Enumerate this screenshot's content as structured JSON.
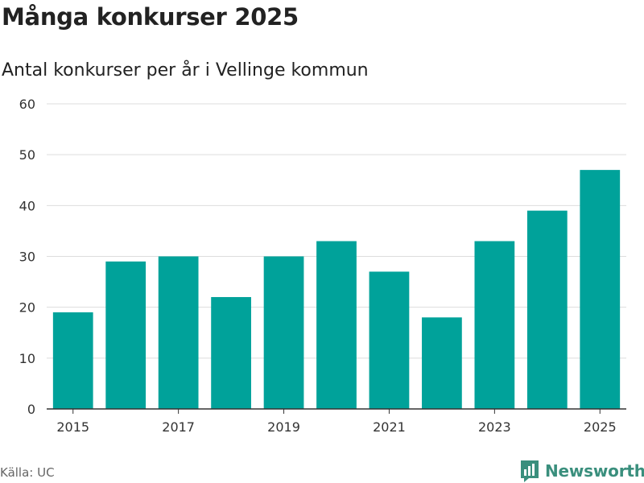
{
  "header": {
    "title": "Många konkurser 2025",
    "subtitle": "Antal konkurser per år i Vellinge kommun"
  },
  "footer": {
    "source": "Källa: UC",
    "brand": "Newsworthy"
  },
  "colors": {
    "bar": "#00a29a",
    "grid": "#dddddd",
    "axis": "#333333",
    "brand": "#3a8f7d"
  },
  "chart_data": {
    "type": "bar",
    "title": "Många konkurser 2025",
    "subtitle": "Antal konkurser per år i Vellinge kommun",
    "categories": [
      "2015",
      "2016",
      "2017",
      "2018",
      "2019",
      "2020",
      "2021",
      "2022",
      "2023",
      "2024",
      "2025"
    ],
    "values": [
      19,
      29,
      30,
      22,
      30,
      33,
      27,
      18,
      33,
      39,
      47
    ],
    "x_tick_labels": [
      "2015",
      "2017",
      "2019",
      "2021",
      "2023",
      "2025"
    ],
    "y_ticks": [
      0,
      10,
      20,
      30,
      40,
      50,
      60
    ],
    "ylim": [
      0,
      60
    ],
    "xlabel": "",
    "ylabel": "",
    "grid": true
  }
}
